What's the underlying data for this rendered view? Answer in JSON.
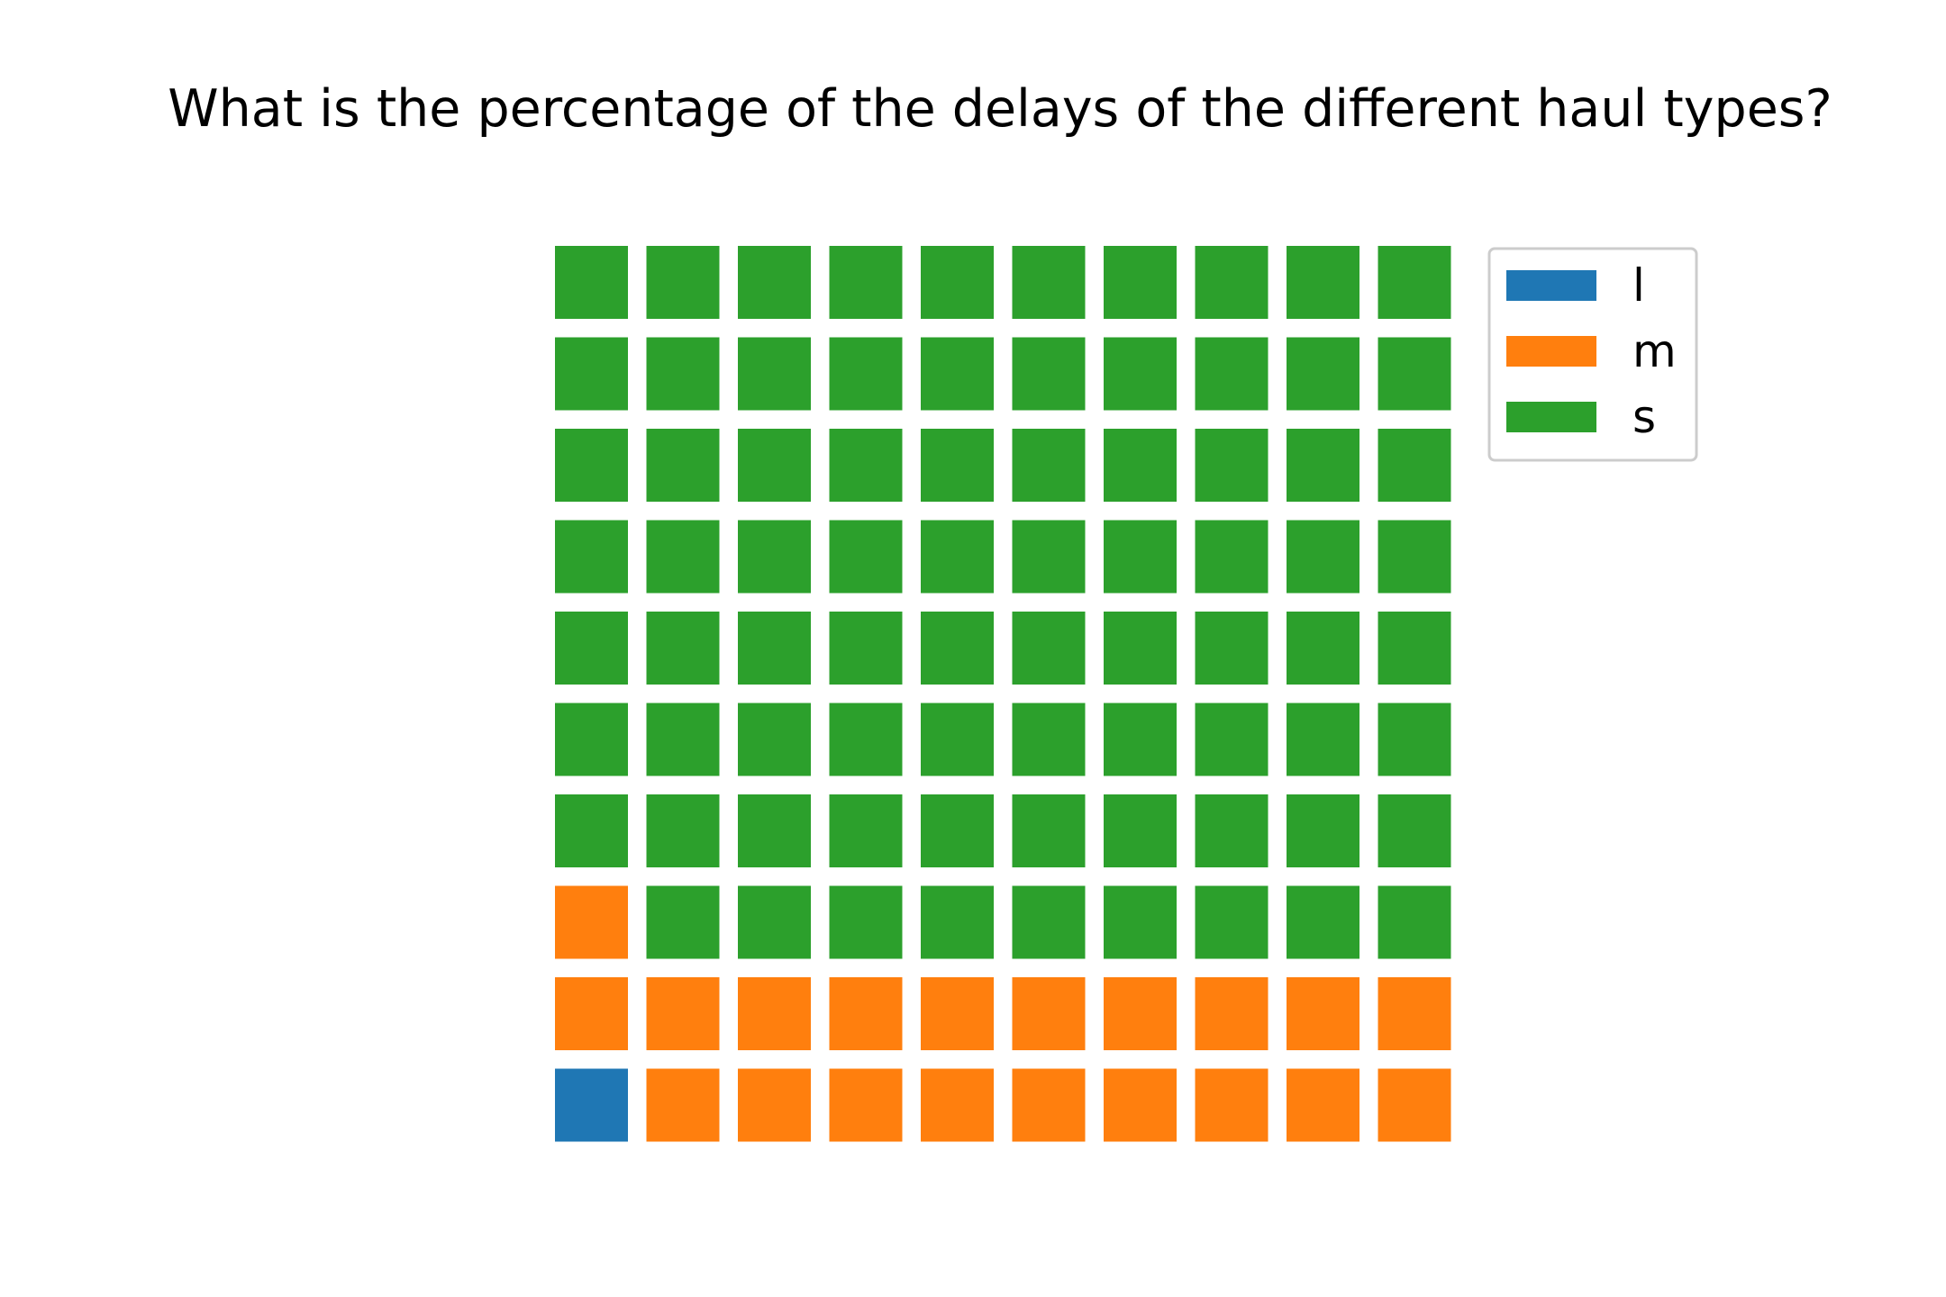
{
  "chart_data": {
    "type": "waffle",
    "title": "What is the percentage of the delays of the different haul types?",
    "categories": [
      "l",
      "m",
      "s"
    ],
    "values": [
      1,
      20,
      79
    ],
    "unit": "percent",
    "grid": {
      "rows": 10,
      "columns": 10
    },
    "fill_order": "left-to-right, bottom-to-top",
    "colors": [
      "#1f77b4",
      "#ff7f0e",
      "#2ca02c"
    ],
    "legend": {
      "position": "top-right",
      "entries": [
        "l",
        "m",
        "s"
      ]
    }
  }
}
